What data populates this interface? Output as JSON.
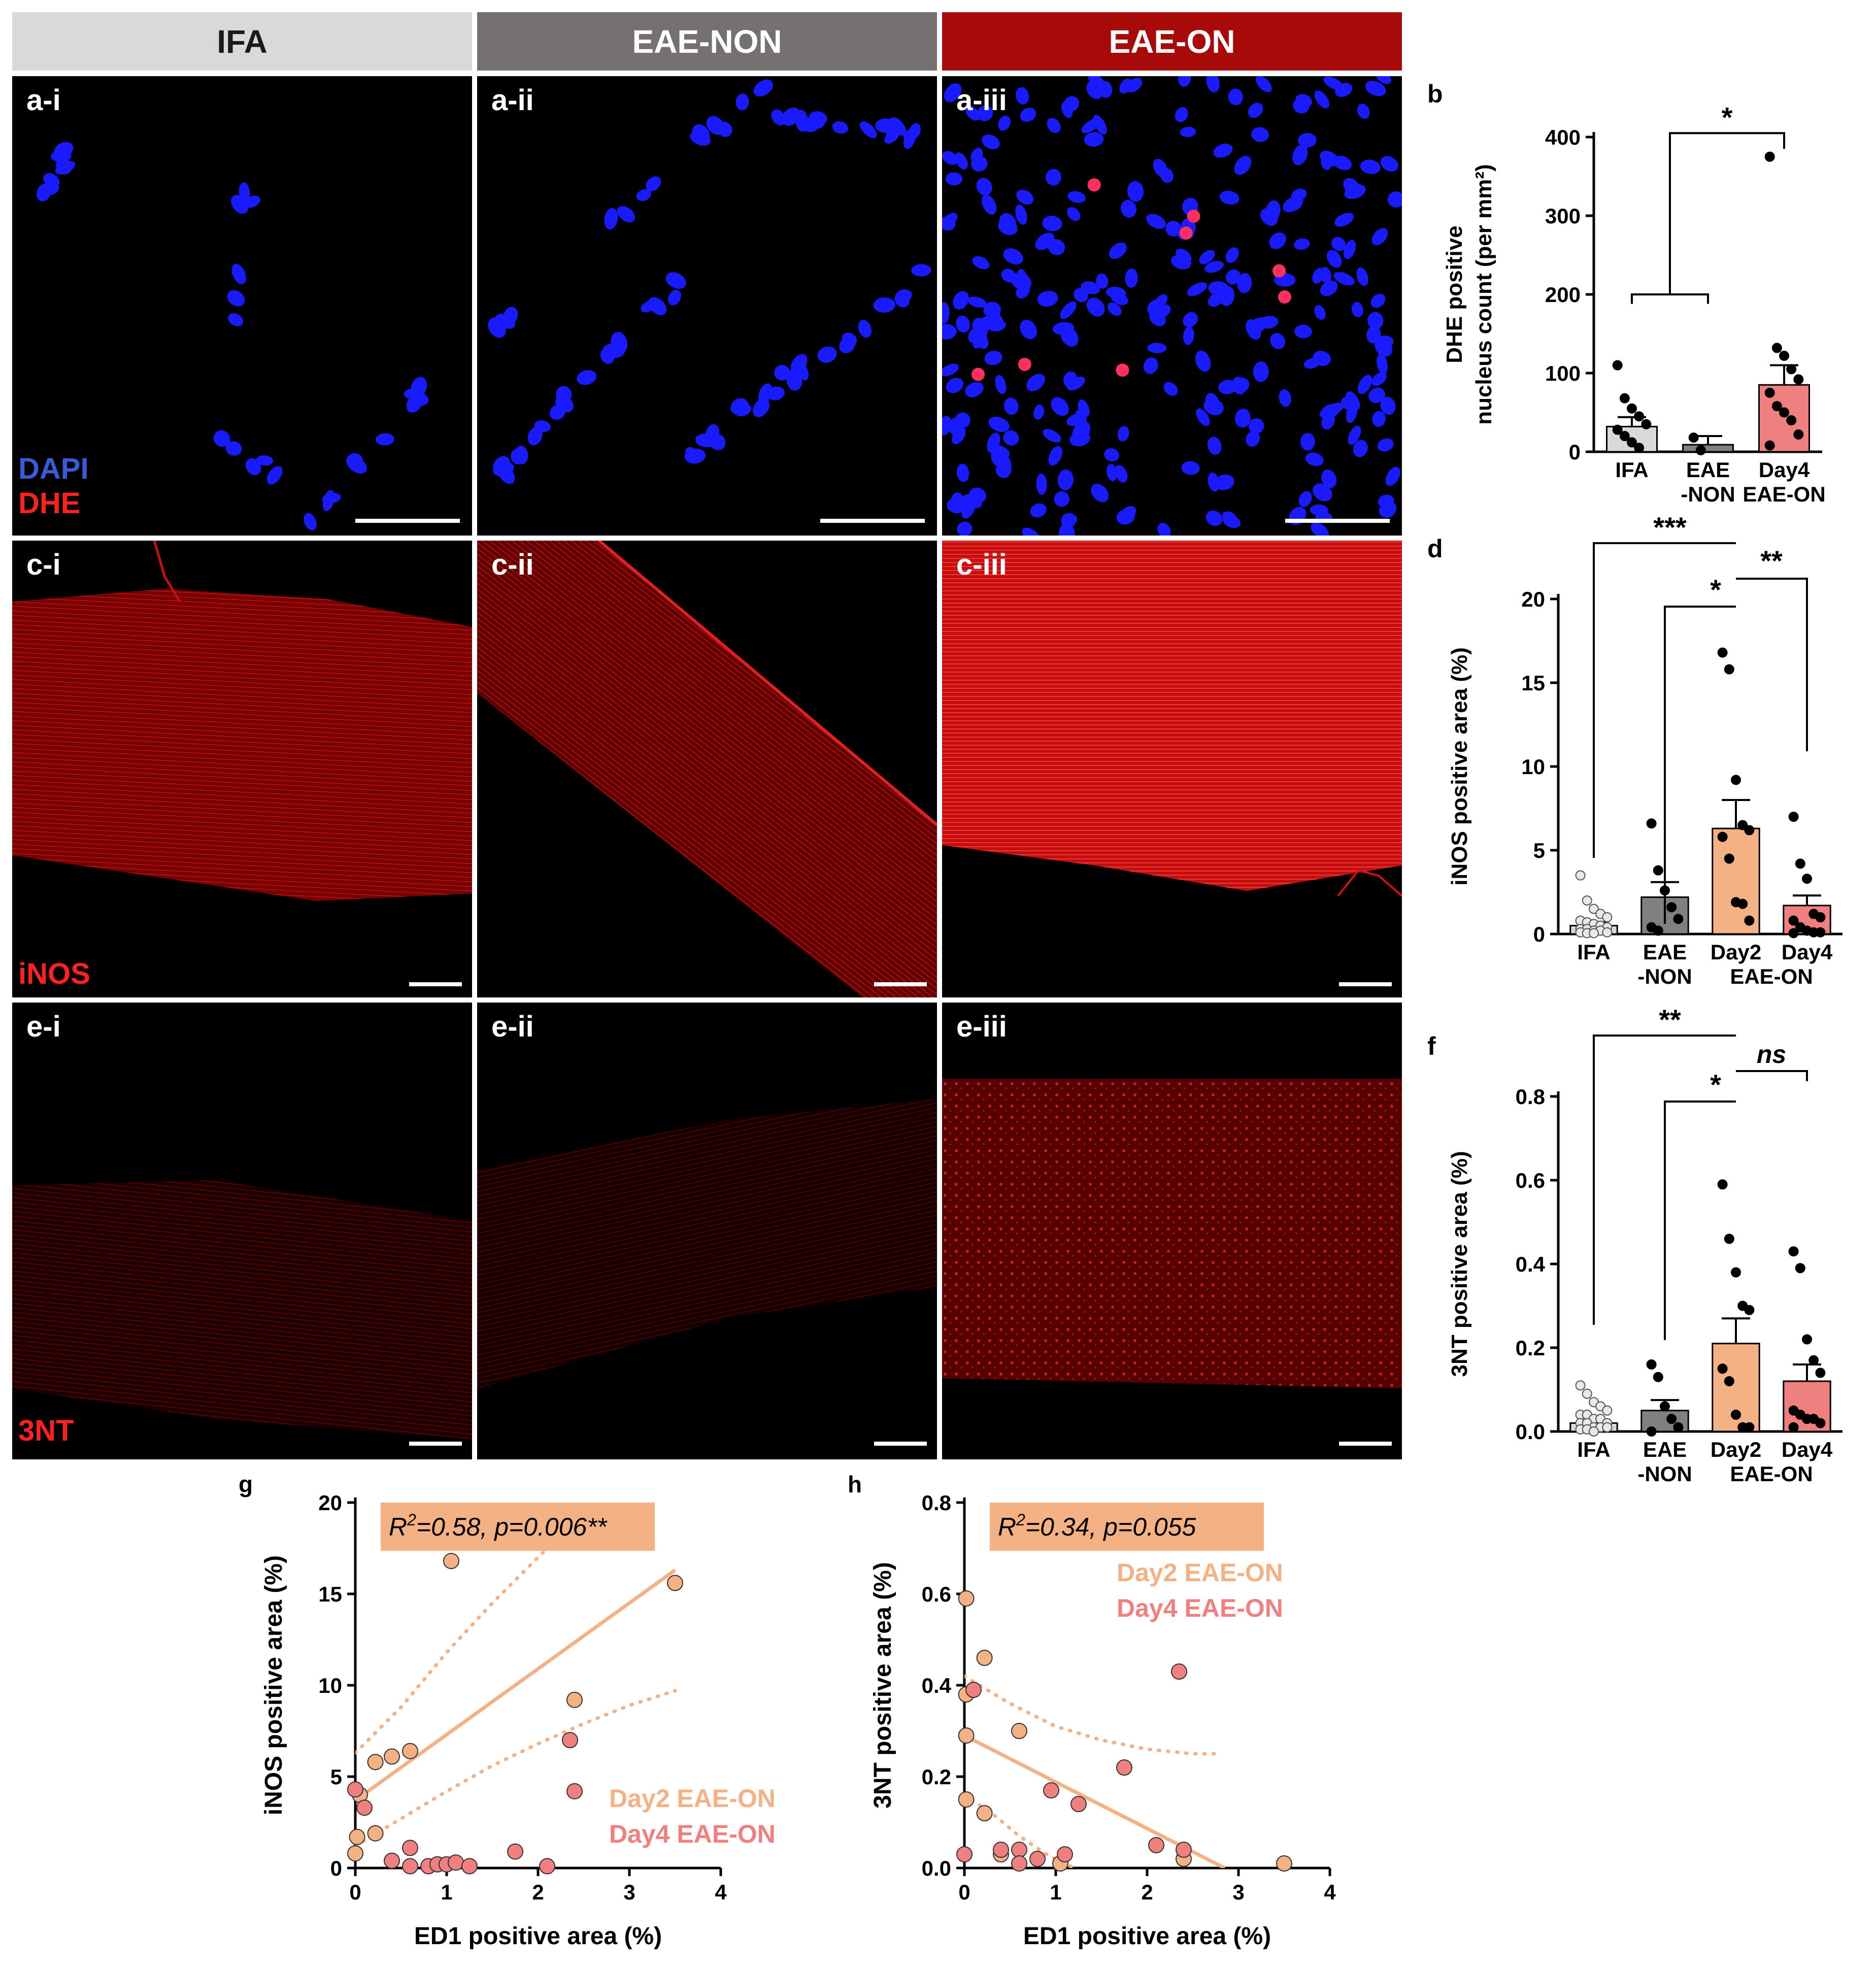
{
  "headers": [
    {
      "label": "IFA",
      "bg": "#d9d9d9",
      "fg": "#1a1a1a"
    },
    {
      "label": "EAE-NON",
      "bg": "#767171",
      "fg": "#ffffff"
    },
    {
      "label": "EAE-ON",
      "bg": "#a80a0a",
      "fg": "#ffffff"
    }
  ],
  "micrographs": {
    "row_a": {
      "labels": [
        "a-i",
        "a-ii",
        "a-iii"
      ],
      "stain_dapi": "DAPI",
      "stain_dhe": "DHE"
    },
    "row_c": {
      "labels": [
        "c-i",
        "c-ii",
        "c-iii"
      ],
      "stain": "iNOS"
    },
    "row_e": {
      "labels": [
        "e-i",
        "e-ii",
        "e-iii"
      ],
      "stain": "3NT"
    }
  },
  "colors": {
    "ifa_bar": "#d9d9d9",
    "eae_non_bar": "#808080",
    "day2_bar": "#f4b183",
    "day4_bar": "#f08080",
    "day2_point": "#f4b183",
    "day4_point": "#f08080",
    "fit_line": "#f4b183",
    "annotation_box": "#f4b183",
    "dapi": "#1a1aff",
    "dhe": "#ff1a1a"
  },
  "chart_data": [
    {
      "panel": "b",
      "type": "bar",
      "ylabel_line1": "DHE positive",
      "ylabel_line2": "nucleus count (per mm²)",
      "ylim": [
        0,
        400
      ],
      "yticks": [
        "0",
        "100",
        "200",
        "300",
        "400"
      ],
      "categories": [
        {
          "label_line1": "IFA",
          "label_line2": "",
          "value": 32,
          "sem": 12,
          "color_key": "ifa_bar",
          "points": [
            110,
            68,
            55,
            45,
            35,
            28,
            20,
            12,
            5
          ]
        },
        {
          "label_line1": "EAE",
          "label_line2": "-NON",
          "value": 9,
          "sem": 11,
          "color_key": "eae_non_bar",
          "points": [
            18,
            2
          ]
        },
        {
          "label_line1": "Day4",
          "label_line2": "EAE-ON",
          "value": 85,
          "sem": 25,
          "color_key": "day4_bar",
          "points": [
            375,
            132,
            122,
            105,
            92,
            75,
            58,
            50,
            40,
            22,
            8
          ]
        }
      ],
      "significance": [
        {
          "text": "*"
        }
      ]
    },
    {
      "panel": "d",
      "type": "bar",
      "ylabel": "iNOS positive area (%)",
      "ylim": [
        0,
        20
      ],
      "yticks": [
        "0",
        "5",
        "10",
        "15",
        "20"
      ],
      "categories": [
        {
          "label": "IFA",
          "value": 0.5,
          "sem": 0.2,
          "color_key": "ifa_bar",
          "open_points": true,
          "points": [
            3.5,
            2.0,
            1.5,
            1.2,
            1.0,
            0.8,
            0.7,
            0.6,
            0.5,
            0.4,
            0.3,
            0.3,
            0.2,
            0.2,
            0.1,
            0.1,
            0.05,
            0.05
          ]
        },
        {
          "label": "EAE",
          "label_line2": "-NON",
          "value": 2.2,
          "sem": 0.9,
          "color_key": "eae_non_bar",
          "points": [
            6.6,
            3.8,
            2.6,
            1.6,
            0.9,
            0.4,
            0.2
          ]
        },
        {
          "label": "Day2",
          "value": 6.3,
          "sem": 1.7,
          "color_key": "day2_bar",
          "points": [
            16.8,
            15.8,
            9.2,
            6.5,
            6.2,
            5.8,
            4.5,
            1.9,
            1.8,
            0.8
          ]
        },
        {
          "label": "Day4",
          "value": 1.7,
          "sem": 0.6,
          "color_key": "day4_bar",
          "points": [
            7.0,
            4.2,
            3.3,
            1.2,
            1.0,
            0.8,
            0.4,
            0.2,
            0.1,
            0.1,
            0.05
          ]
        }
      ],
      "group_label": "EAE-ON",
      "significance": [
        {
          "text": "***"
        },
        {
          "text": "*"
        },
        {
          "text": "**"
        }
      ]
    },
    {
      "panel": "f",
      "type": "bar",
      "ylabel": "3NT positive area (%)",
      "ylim": [
        0,
        0.8
      ],
      "yticks": [
        "0.0",
        "0.2",
        "0.4",
        "0.6",
        "0.8"
      ],
      "categories": [
        {
          "label": "IFA",
          "value": 0.02,
          "sem": 0.007,
          "color_key": "ifa_bar",
          "open_points": true,
          "points": [
            0.11,
            0.09,
            0.07,
            0.06,
            0.05,
            0.04,
            0.04,
            0.03,
            0.03,
            0.02,
            0.02,
            0.02,
            0.01,
            0.01,
            0.01,
            0.005,
            0.005,
            0.0
          ]
        },
        {
          "label": "EAE",
          "label_line2": "-NON",
          "value": 0.05,
          "sem": 0.025,
          "color_key": "eae_non_bar",
          "points": [
            0.16,
            0.13,
            0.06,
            0.03,
            0.01,
            0.0
          ]
        },
        {
          "label": "Day2",
          "value": 0.21,
          "sem": 0.06,
          "color_key": "day2_bar",
          "points": [
            0.59,
            0.46,
            0.38,
            0.3,
            0.29,
            0.15,
            0.12,
            0.04,
            0.01,
            0.01
          ]
        },
        {
          "label": "Day4",
          "value": 0.12,
          "sem": 0.04,
          "color_key": "day4_bar",
          "points": [
            0.43,
            0.39,
            0.22,
            0.17,
            0.14,
            0.05,
            0.04,
            0.03,
            0.03,
            0.02,
            0.01
          ]
        }
      ],
      "group_label": "EAE-ON",
      "significance": [
        {
          "text": "**"
        },
        {
          "text": "*"
        },
        {
          "text": "ns"
        }
      ]
    },
    {
      "panel": "g",
      "type": "scatter",
      "xlabel": "ED1 positive area (%)",
      "ylabel": "iNOS positive area (%)",
      "xlim": [
        0,
        4
      ],
      "ylim": [
        0,
        20
      ],
      "xticks": [
        "0",
        "1",
        "2",
        "3",
        "4"
      ],
      "yticks": [
        "0",
        "5",
        "10",
        "15",
        "20"
      ],
      "annotation_r": "R",
      "annotation_sup": "2",
      "annotation_rest": "=0.58, p=0.006**",
      "series": [
        {
          "name": "Day2 EAE-ON",
          "color_key": "day2_point",
          "points": [
            [
              0.0,
              0.8
            ],
            [
              0.02,
              1.7
            ],
            [
              0.05,
              4.0
            ],
            [
              0.22,
              5.8
            ],
            [
              0.4,
              6.1
            ],
            [
              0.6,
              6.4
            ],
            [
              1.05,
              16.8
            ],
            [
              0.22,
              1.9
            ],
            [
              2.4,
              9.2
            ],
            [
              3.5,
              15.6
            ]
          ]
        },
        {
          "name": "Day4 EAE-ON",
          "color_key": "day4_point",
          "points": [
            [
              0.0,
              4.3
            ],
            [
              0.1,
              3.3
            ],
            [
              0.4,
              0.4
            ],
            [
              0.6,
              1.1
            ],
            [
              0.6,
              0.1
            ],
            [
              0.8,
              0.1
            ],
            [
              0.9,
              0.2
            ],
            [
              1.0,
              0.2
            ],
            [
              1.1,
              0.3
            ],
            [
              1.25,
              0.1
            ],
            [
              1.75,
              0.9
            ],
            [
              2.1,
              0.1
            ],
            [
              2.35,
              7.0
            ],
            [
              2.4,
              4.2
            ]
          ]
        }
      ],
      "fit": {
        "x0": 0,
        "y0": 3.7,
        "x1": 3.5,
        "y1": 16.3
      },
      "ci_upper": [
        [
          0,
          6.3
        ],
        [
          0.5,
          8.8
        ],
        [
          1.0,
          11.8
        ],
        [
          1.5,
          14.5
        ],
        [
          2.0,
          17.0
        ],
        [
          2.5,
          19.5
        ],
        [
          2.8,
          21.0
        ]
      ],
      "ci_lower": [
        [
          0,
          1.2
        ],
        [
          0.5,
          2.7
        ],
        [
          1.0,
          4.2
        ],
        [
          1.5,
          5.6
        ],
        [
          2.0,
          6.8
        ],
        [
          2.5,
          7.9
        ],
        [
          3.0,
          8.9
        ],
        [
          3.5,
          9.7
        ]
      ]
    },
    {
      "panel": "h",
      "type": "scatter",
      "xlabel": "ED1 positive area (%)",
      "ylabel": "3NT positive area (%)",
      "xlim": [
        0,
        4
      ],
      "ylim": [
        0,
        0.8
      ],
      "xticks": [
        "0",
        "1",
        "2",
        "3",
        "4"
      ],
      "yticks": [
        "0.0",
        "0.2",
        "0.4",
        "0.6",
        "0.8"
      ],
      "annotation_r": "R",
      "annotation_sup": "2",
      "annotation_rest": "=0.34, p=0.055",
      "series": [
        {
          "name": "Day2 EAE-ON",
          "color_key": "day2_point",
          "points": [
            [
              0.02,
              0.59
            ],
            [
              0.22,
              0.46
            ],
            [
              0.02,
              0.38
            ],
            [
              0.02,
              0.29
            ],
            [
              0.6,
              0.3
            ],
            [
              0.02,
              0.15
            ],
            [
              0.22,
              0.12
            ],
            [
              0.4,
              0.03
            ],
            [
              1.05,
              0.01
            ],
            [
              2.4,
              0.02
            ],
            [
              3.5,
              0.01
            ]
          ]
        },
        {
          "name": "Day4 EAE-ON",
          "color_key": "day4_point",
          "points": [
            [
              0.1,
              0.39
            ],
            [
              0.0,
              0.03
            ],
            [
              0.4,
              0.04
            ],
            [
              0.6,
              0.04
            ],
            [
              0.6,
              0.01
            ],
            [
              0.8,
              0.02
            ],
            [
              0.95,
              0.17
            ],
            [
              1.1,
              0.03
            ],
            [
              1.25,
              0.14
            ],
            [
              1.75,
              0.22
            ],
            [
              2.1,
              0.05
            ],
            [
              2.35,
              0.43
            ],
            [
              2.4,
              0.04
            ]
          ]
        }
      ],
      "fit": {
        "x0": 0,
        "y0": 0.29,
        "x1": 2.85,
        "y1": 0.0
      },
      "ci_upper": [
        [
          0,
          0.42
        ],
        [
          0.5,
          0.36
        ],
        [
          1.0,
          0.31
        ],
        [
          1.5,
          0.28
        ],
        [
          2.0,
          0.26
        ],
        [
          2.5,
          0.25
        ],
        [
          2.8,
          0.25
        ]
      ],
      "ci_lower": [
        [
          0,
          0.16
        ],
        [
          0.3,
          0.12
        ],
        [
          0.6,
          0.07
        ],
        [
          0.9,
          0.03
        ],
        [
          1.2,
          0.0
        ]
      ]
    }
  ]
}
